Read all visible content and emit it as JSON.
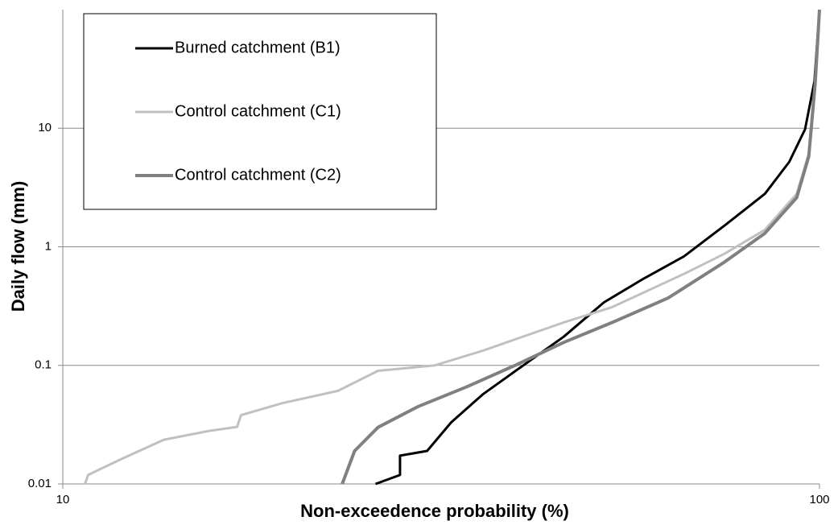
{
  "chart_data": {
    "type": "line",
    "x_label": "Non-exceedence  probability (%)",
    "y_label": "Daily flow (mm)",
    "xscale": "log",
    "yscale": "log",
    "xlim": [
      10,
      100
    ],
    "ylim": [
      0.01,
      100
    ],
    "xticks": [
      10,
      100
    ],
    "yticks": [
      0.01,
      0.1,
      1,
      10
    ],
    "grid": true,
    "legend": "upper left",
    "series": [
      {
        "name": "Burned catchment (B1)",
        "color": "#000000",
        "x": [
          25.9,
          27.9,
          27.9,
          30.3,
          32.6,
          35.9,
          40.6,
          45.9,
          51.9,
          58.6,
          66.2,
          74.8,
          84.7,
          91.2,
          95.7,
          98.5,
          100
        ],
        "values": [
          0.01,
          0.0119,
          0.0173,
          0.019,
          0.033,
          0.057,
          0.1,
          0.174,
          0.34,
          0.54,
          0.83,
          1.5,
          2.8,
          5.2,
          9.8,
          25,
          100
        ]
      },
      {
        "name": "Control catchment (C1)",
        "color": "#c0c0c0",
        "x": [
          10.7,
          10.8,
          11.9,
          13.6,
          15.6,
          17.0,
          17.2,
          19.5,
          23.1,
          26.1,
          31.0,
          35.9,
          45.9,
          53.2,
          66.2,
          74.8,
          84.7,
          93.3,
          96.8,
          98.7,
          100
        ],
        "values": [
          0.01,
          0.0119,
          0.016,
          0.0236,
          0.028,
          0.0303,
          0.038,
          0.048,
          0.061,
          0.09,
          0.1,
          0.133,
          0.23,
          0.31,
          0.59,
          0.87,
          1.39,
          2.8,
          6.1,
          25,
          100
        ]
      },
      {
        "name": "Control catchment (C2)",
        "color": "#808080",
        "x": [
          23.4,
          24.3,
          26.1,
          29.5,
          34.2,
          39.6,
          45.9,
          53.2,
          63.1,
          74.8,
          84.7,
          93.3,
          96.8,
          98.7,
          100
        ],
        "values": [
          0.01,
          0.019,
          0.03,
          0.045,
          0.066,
          0.1,
          0.156,
          0.23,
          0.37,
          0.74,
          1.3,
          2.6,
          5.8,
          24,
          100
        ]
      }
    ]
  }
}
